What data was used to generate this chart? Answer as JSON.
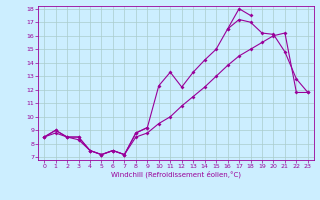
{
  "xlabel": "Windchill (Refroidissement éolien,°C)",
  "bg_color": "#cceeff",
  "grid_color": "#aacccc",
  "line_color": "#990099",
  "xlim": [
    -0.5,
    23.5
  ],
  "ylim": [
    6.8,
    18.2
  ],
  "xticks": [
    0,
    1,
    2,
    3,
    4,
    5,
    6,
    7,
    8,
    9,
    10,
    11,
    12,
    13,
    14,
    15,
    16,
    17,
    18,
    19,
    20,
    21,
    22,
    23
  ],
  "yticks": [
    7,
    8,
    9,
    10,
    11,
    12,
    13,
    14,
    15,
    16,
    17,
    18
  ],
  "line1_x": [
    0,
    1,
    2,
    3,
    4,
    5,
    6,
    7,
    8,
    9,
    10,
    11,
    12,
    13,
    14,
    15,
    16,
    17,
    18,
    19,
    20,
    21,
    22,
    23
  ],
  "line1_y": [
    8.5,
    9.0,
    8.5,
    8.5,
    7.5,
    7.2,
    7.5,
    7.2,
    8.8,
    9.2,
    12.3,
    13.3,
    12.2,
    13.3,
    14.2,
    15.0,
    16.5,
    18.0,
    17.5,
    null,
    null,
    null,
    null,
    null
  ],
  "line2_x": [
    0,
    1,
    2,
    3,
    4,
    5,
    6,
    7,
    8,
    9,
    10,
    11,
    12,
    13,
    14,
    15,
    16,
    17,
    18,
    19,
    20,
    21,
    22,
    23
  ],
  "line2_y": [
    8.5,
    9.0,
    8.5,
    8.5,
    7.5,
    7.2,
    7.5,
    7.2,
    8.8,
    9.2,
    null,
    null,
    null,
    null,
    null,
    null,
    16.5,
    17.2,
    17.0,
    16.2,
    16.1,
    14.8,
    12.8,
    11.8
  ],
  "line3_x": [
    0,
    1,
    2,
    3,
    4,
    5,
    6,
    7,
    8,
    9,
    10,
    11,
    12,
    13,
    14,
    15,
    16,
    17,
    18,
    19,
    20,
    21,
    22,
    23
  ],
  "line3_y": [
    8.5,
    8.8,
    8.5,
    8.3,
    7.5,
    7.2,
    7.5,
    7.2,
    8.5,
    8.8,
    9.5,
    10.0,
    10.8,
    11.5,
    12.2,
    13.0,
    13.8,
    14.5,
    15.0,
    15.5,
    16.0,
    16.2,
    11.8,
    11.8
  ]
}
